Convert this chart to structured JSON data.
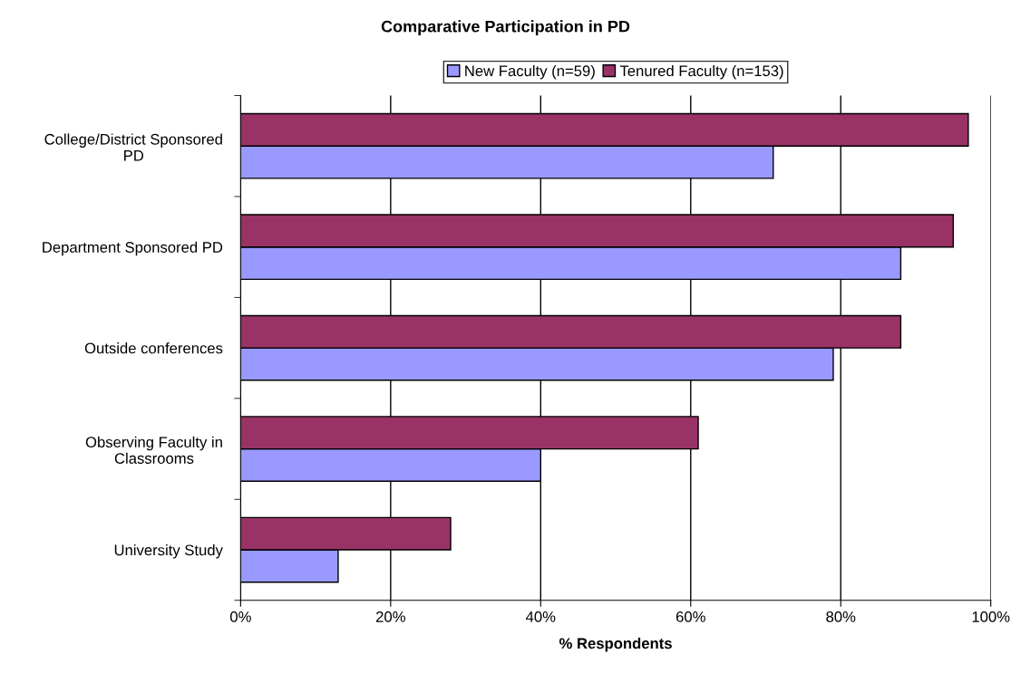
{
  "chart_data": {
    "type": "bar",
    "orientation": "horizontal",
    "title": "Comparative Participation in PD",
    "xlabel": "% Respondents",
    "categories": [
      "College/District Sponsored\nPD",
      "Department Sponsored PD",
      "Outside conferences",
      "Observing Faculty in\nClassrooms",
      "University Study"
    ],
    "series": [
      {
        "name": "New Faculty (n=59)",
        "color": "#9999ff",
        "values": [
          71,
          88,
          79,
          40,
          13
        ]
      },
      {
        "name": "Tenured Faculty (n=153)",
        "color": "#993366",
        "values": [
          97,
          95,
          88,
          61,
          28
        ]
      }
    ],
    "xlim": [
      0,
      100
    ],
    "xticks": [
      {
        "value": 0,
        "label": "0%"
      },
      {
        "value": 20,
        "label": "20%"
      },
      {
        "value": 40,
        "label": "40%"
      },
      {
        "value": 60,
        "label": "60%"
      },
      {
        "value": 80,
        "label": "80%"
      },
      {
        "value": 100,
        "label": "100%"
      }
    ],
    "grid": "x",
    "legend": "top"
  }
}
